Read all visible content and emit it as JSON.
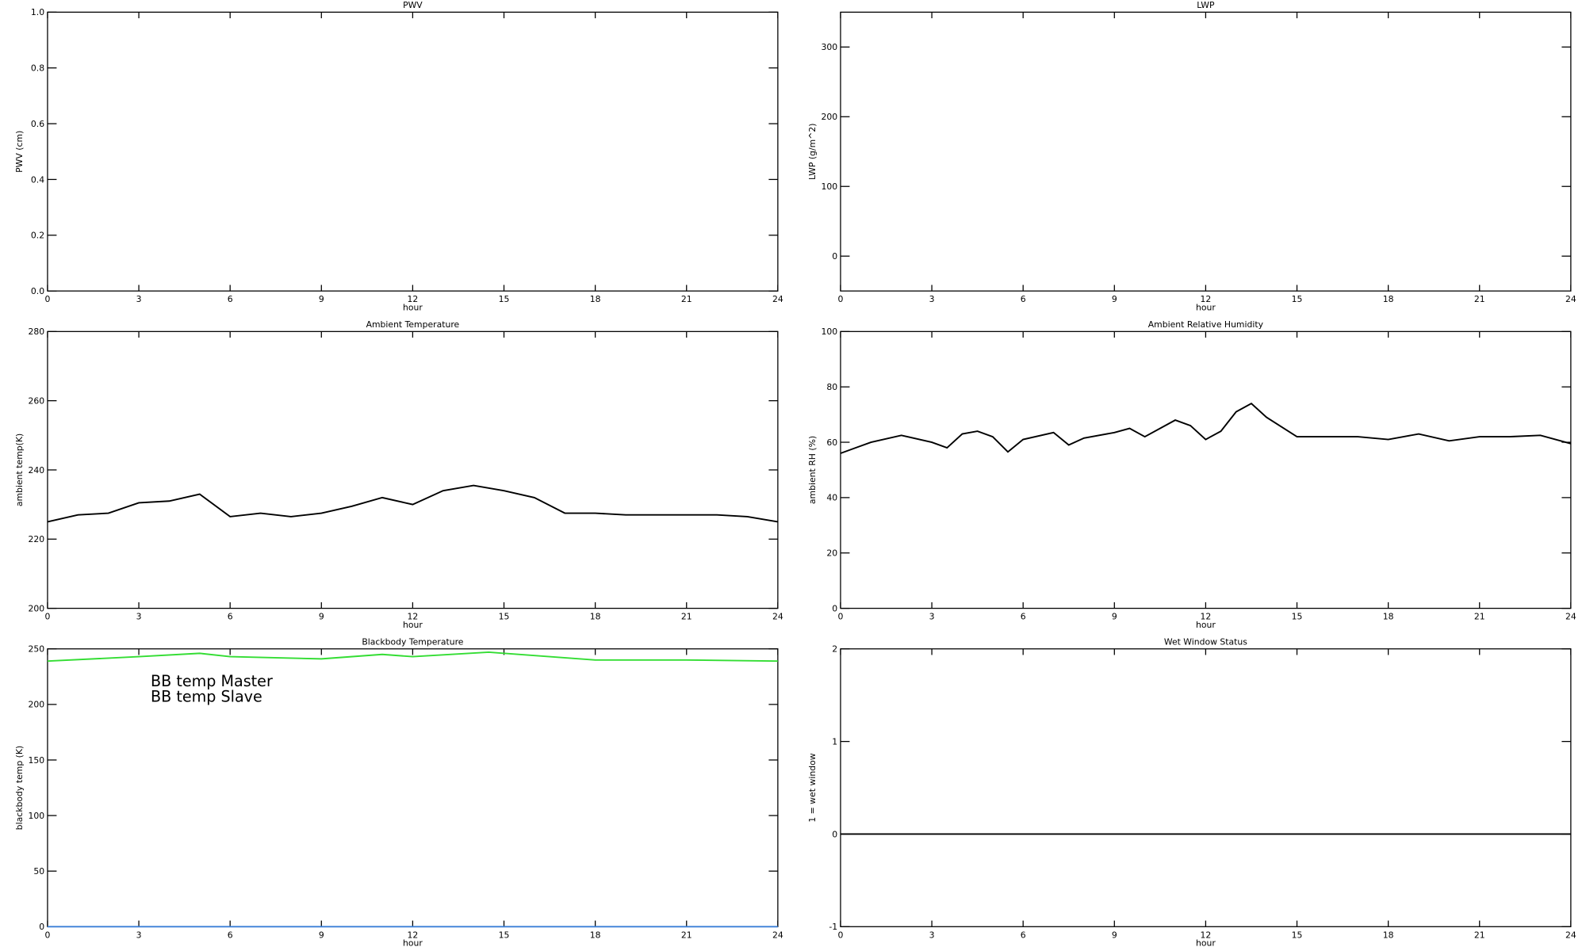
{
  "chart_data": [
    {
      "type": "line",
      "title": "PWV",
      "xlabel": "hour",
      "ylabel": "PWV (cm)",
      "xlim": [
        0,
        24
      ],
      "xticks": [
        0,
        3,
        6,
        9,
        12,
        15,
        18,
        21,
        24
      ],
      "ylim": [
        0,
        1
      ],
      "yticks": [
        {
          "value": 0,
          "label": "0.0"
        },
        {
          "value": 0.2,
          "label": "0.2"
        },
        {
          "value": 0.4,
          "label": "0.4"
        },
        {
          "value": 0.6,
          "label": "0.6"
        },
        {
          "value": 0.8,
          "label": "0.8"
        },
        {
          "value": 1,
          "label": "1.0"
        }
      ]
    },
    {
      "type": "line",
      "title": "LWP",
      "xlabel": "hour",
      "ylabel": "LWP (g/m^2)",
      "xlim": [
        0,
        24
      ],
      "xticks": [
        0,
        3,
        6,
        9,
        12,
        15,
        18,
        21,
        24
      ],
      "ylim": [
        -50,
        350
      ],
      "yticks": [
        0,
        100,
        200,
        300
      ]
    },
    {
      "type": "line",
      "title": "Ambient Temperature",
      "xlabel": "hour",
      "ylabel": "ambient temp(K)",
      "xlim": [
        0,
        24
      ],
      "xticks": [
        0,
        3,
        6,
        9,
        12,
        15,
        18,
        21,
        24
      ],
      "ylim": [
        200,
        280
      ],
      "yticks": [
        200,
        220,
        240,
        260,
        280
      ],
      "x": [
        0,
        1,
        2,
        3,
        4,
        5,
        6,
        7,
        8,
        9,
        10,
        11,
        12,
        13,
        14,
        15,
        16,
        17,
        18,
        19,
        20,
        21,
        22,
        23,
        24
      ],
      "series": [
        {
          "color": "#000000",
          "values": [
            225,
            227,
            227.5,
            230.5,
            231,
            233,
            226.5,
            227.5,
            226.5,
            227.5,
            229.5,
            232,
            230,
            234,
            235.5,
            234,
            232,
            227.5,
            227.5,
            227,
            227,
            227,
            227,
            226.5,
            225
          ]
        }
      ]
    },
    {
      "type": "line",
      "title": "Ambient Relative Humidity",
      "xlabel": "hour",
      "ylabel": "ambient RH (%)",
      "xlim": [
        0,
        24
      ],
      "xticks": [
        0,
        3,
        6,
        9,
        12,
        15,
        18,
        21,
        24
      ],
      "ylim": [
        0,
        100
      ],
      "yticks": [
        0,
        20,
        40,
        60,
        80,
        100
      ],
      "x": [
        0,
        0.5,
        1,
        2,
        3,
        3.5,
        4,
        4.5,
        5,
        5.5,
        6,
        7,
        7.5,
        8,
        9,
        9.5,
        10,
        11,
        11.5,
        12,
        12.5,
        13,
        13.5,
        14,
        15,
        16,
        17,
        18,
        18.5,
        19,
        20,
        21,
        22,
        23,
        24
      ],
      "series": [
        {
          "color": "#000000",
          "values": [
            56,
            58,
            60,
            62.5,
            60,
            58,
            63,
            64,
            62,
            56.5,
            61,
            63.5,
            59,
            61.5,
            63.5,
            65,
            62,
            68,
            66,
            61,
            64,
            71,
            74,
            69,
            62,
            62,
            62,
            61,
            62,
            63,
            60.5,
            62,
            62,
            62.5,
            59.5
          ]
        }
      ]
    },
    {
      "type": "line",
      "title": "Blackbody Temperature",
      "xlabel": "hour",
      "ylabel": "blackbody temp (K)",
      "xlim": [
        0,
        24
      ],
      "xticks": [
        0,
        3,
        6,
        9,
        12,
        15,
        18,
        21,
        24
      ],
      "ylim": [
        0,
        250
      ],
      "yticks": [
        0,
        50,
        100,
        150,
        200,
        250
      ],
      "legend": "upper left",
      "x": [
        0,
        3,
        5,
        6,
        9,
        11,
        12,
        14.5,
        18,
        21,
        24
      ],
      "series": [
        {
          "name": "BB temp Master",
          "color": "#3a7fd8",
          "values": [
            0,
            0,
            0,
            0,
            0,
            0,
            0,
            0,
            0,
            0,
            0
          ]
        },
        {
          "name": "BB temp Slave",
          "color": "#33dd33",
          "values": [
            239,
            243,
            246,
            243,
            241,
            245,
            243,
            247,
            240,
            240,
            239
          ]
        }
      ]
    },
    {
      "type": "line",
      "title": "Wet Window Status",
      "xlabel": "hour",
      "ylabel": "1 = wet window",
      "xlim": [
        0,
        24
      ],
      "xticks": [
        0,
        3,
        6,
        9,
        12,
        15,
        18,
        21,
        24
      ],
      "ylim": [
        -1,
        2
      ],
      "yticks": [
        -1,
        0,
        1,
        2
      ],
      "x": [
        0,
        24
      ],
      "series": [
        {
          "color": "#000000",
          "values": [
            0,
            0
          ]
        }
      ]
    }
  ]
}
